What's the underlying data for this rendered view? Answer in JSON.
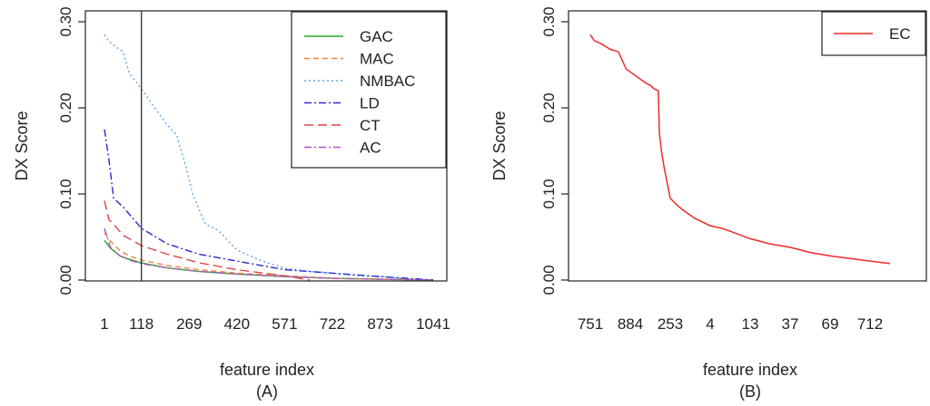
{
  "chart_data": [
    {
      "panel_label": "(A)",
      "type": "line",
      "xlabel": "feature index",
      "ylabel": "DX Score",
      "ylim": [
        0,
        0.3
      ],
      "yticks": [
        "0.00",
        "0.10",
        "0.20",
        "0.30"
      ],
      "xticks": [
        "1",
        "118",
        "269",
        "420",
        "571",
        "722",
        "873",
        "1041"
      ],
      "xlim": [
        1,
        1041
      ],
      "vertical_line_at": 118,
      "grid": false,
      "legend_position": "top-right",
      "series": [
        {
          "name": "GAC",
          "color": "#22aa22",
          "dash": "",
          "x": [
            1,
            20,
            50,
            80,
            118,
            200,
            300,
            420,
            571,
            722,
            873,
            1041
          ],
          "y": [
            0.046,
            0.037,
            0.028,
            0.024,
            0.02,
            0.014,
            0.01,
            0.007,
            0.004,
            0.002,
            0.001,
            0.0
          ]
        },
        {
          "name": "MAC",
          "color": "#f08040",
          "dash": "6,4",
          "x": [
            1,
            20,
            50,
            80,
            118,
            200,
            300,
            420,
            571,
            722,
            873,
            1041
          ],
          "y": [
            0.055,
            0.045,
            0.034,
            0.028,
            0.023,
            0.017,
            0.012,
            0.008,
            0.005,
            0.002,
            0.001,
            0.0
          ]
        },
        {
          "name": "NMBAC",
          "color": "#5aa8e6",
          "dash": "2,3",
          "x": [
            1,
            15,
            40,
            60,
            80,
            118,
            160,
            200,
            230,
            260,
            280,
            320,
            360,
            420,
            500,
            571,
            650,
            722,
            800,
            873,
            950,
            1041
          ],
          "y": [
            0.285,
            0.277,
            0.27,
            0.265,
            0.24,
            0.222,
            0.2,
            0.18,
            0.168,
            0.13,
            0.1,
            0.065,
            0.058,
            0.035,
            0.022,
            0.014,
            0.01,
            0.008,
            0.005,
            0.004,
            0.002,
            0.0
          ]
        },
        {
          "name": "LD",
          "color": "#2a2ad0",
          "dash": "8,3,2,3",
          "x": [
            1,
            15,
            30,
            60,
            118,
            200,
            300,
            420,
            571,
            722,
            873,
            1041
          ],
          "y": [
            0.175,
            0.14,
            0.095,
            0.085,
            0.06,
            0.042,
            0.03,
            0.022,
            0.012,
            0.008,
            0.004,
            0.0
          ]
        },
        {
          "name": "CT",
          "color": "#dd4444",
          "dash": "10,5",
          "x": [
            1,
            15,
            30,
            60,
            118,
            200,
            300,
            420,
            571,
            650
          ],
          "y": [
            0.092,
            0.07,
            0.065,
            0.052,
            0.04,
            0.03,
            0.02,
            0.012,
            0.005,
            0.0
          ]
        },
        {
          "name": "AC",
          "color": "#b14fcf",
          "dash": "8,3,2,3",
          "x": [
            1,
            20,
            50,
            80,
            118,
            200,
            300,
            420,
            571,
            722,
            873,
            1041
          ],
          "y": [
            0.06,
            0.038,
            0.028,
            0.023,
            0.019,
            0.014,
            0.01,
            0.007,
            0.004,
            0.002,
            0.001,
            0.0
          ]
        }
      ]
    },
    {
      "panel_label": "(B)",
      "type": "line",
      "xlabel": "feature index",
      "ylabel": "DX Score",
      "ylim": [
        0,
        0.3
      ],
      "yticks": [
        "0.00",
        "0.10",
        "0.20",
        "0.30"
      ],
      "xticks": [
        "751",
        "884",
        "253",
        "4",
        "13",
        "37",
        "69",
        "712"
      ],
      "grid": false,
      "legend_position": "top-right",
      "series": [
        {
          "name": "EC",
          "color": "#ee2a2a",
          "dash": "",
          "x": [
            0.0,
            0.1,
            0.25,
            0.5,
            0.7,
            0.9,
            1.05,
            1.35,
            1.5,
            1.6,
            1.7,
            1.73,
            1.78,
            1.85,
            2.0,
            2.15,
            2.3,
            2.6,
            3.0,
            3.3,
            3.6,
            4.0,
            4.5,
            5.0,
            5.5,
            6.0,
            6.5,
            7.0,
            7.5
          ],
          "y": [
            0.285,
            0.278,
            0.275,
            0.268,
            0.265,
            0.245,
            0.24,
            0.23,
            0.226,
            0.222,
            0.22,
            0.17,
            0.15,
            0.13,
            0.095,
            0.088,
            0.082,
            0.072,
            0.063,
            0.06,
            0.055,
            0.048,
            0.042,
            0.038,
            0.032,
            0.028,
            0.025,
            0.022,
            0.019
          ]
        }
      ]
    }
  ]
}
